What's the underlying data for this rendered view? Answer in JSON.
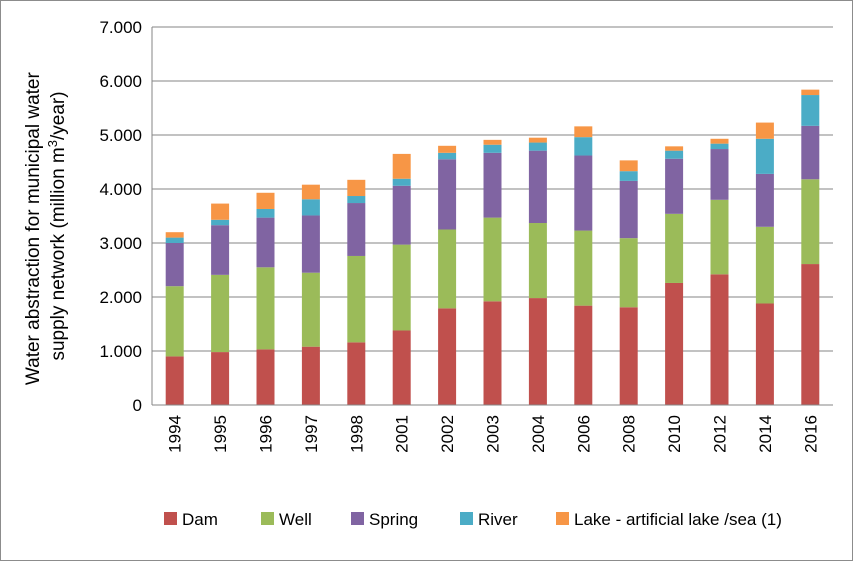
{
  "chart_data": {
    "type": "bar",
    "stacked": true,
    "categories": [
      "1994",
      "1995",
      "1996",
      "1997",
      "1998",
      "2001",
      "2002",
      "2003",
      "2004",
      "2006",
      "2008",
      "2010",
      "2012",
      "2014",
      "2016"
    ],
    "series": [
      {
        "name": "Dam",
        "color": "#c0504d",
        "values": [
          900,
          980,
          1030,
          1080,
          1160,
          1380,
          1790,
          1920,
          1980,
          1840,
          1810,
          2260,
          2420,
          1880,
          2610
        ]
      },
      {
        "name": "Well",
        "color": "#9bbb59",
        "values": [
          1300,
          1430,
          1520,
          1370,
          1600,
          1590,
          1460,
          1550,
          1390,
          1390,
          1280,
          1280,
          1380,
          1420,
          1570
        ]
      },
      {
        "name": "Spring",
        "color": "#8064a2",
        "values": [
          800,
          920,
          920,
          1060,
          980,
          1090,
          1300,
          1200,
          1340,
          1390,
          1060,
          1020,
          940,
          980,
          990
        ]
      },
      {
        "name": "River",
        "color": "#4bacc6",
        "values": [
          100,
          100,
          160,
          300,
          130,
          130,
          120,
          150,
          150,
          340,
          180,
          150,
          100,
          650,
          570
        ]
      },
      {
        "name": "Lake - artificial lake /sea (1)",
        "color": "#f79646",
        "values": [
          100,
          300,
          300,
          270,
          300,
          460,
          130,
          90,
          90,
          200,
          200,
          80,
          90,
          300,
          100
        ]
      }
    ],
    "y_ticks": [
      "0",
      "1.000",
      "2.000",
      "3.000",
      "4.000",
      "5.000",
      "6.000",
      "7.000"
    ],
    "ylim": [
      0,
      7000
    ],
    "ylabel_line1": "Water abstraction for municipal water",
    "ylabel_line2_prefix": "supply network (million m",
    "ylabel_line2_sup": "3",
    "ylabel_line2_suffix": "/year)",
    "grid": true,
    "legend_position": "bottom"
  }
}
